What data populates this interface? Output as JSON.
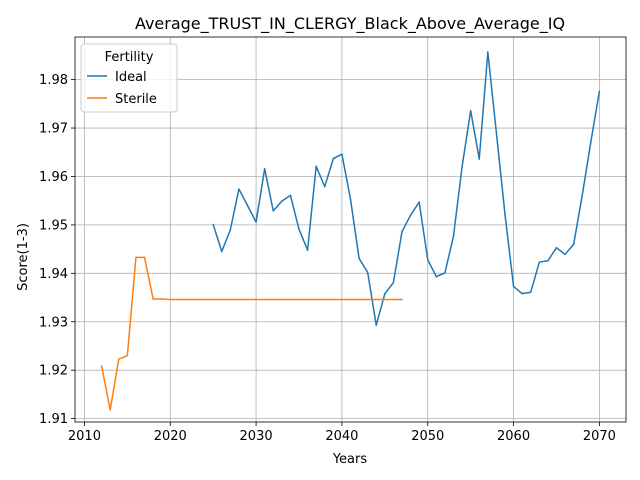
{
  "chart_data": {
    "type": "line",
    "title": "Average_TRUST_IN_CLERGY_Black_Above_Average_IQ",
    "xlabel": "Years",
    "ylabel": "Score(1-3)",
    "xlim": [
      2008.9,
      2073.1
    ],
    "ylim": [
      1.9093,
      1.9888
    ],
    "xticks": [
      2010,
      2020,
      2030,
      2040,
      2050,
      2060,
      2070
    ],
    "yticks": [
      1.91,
      1.92,
      1.93,
      1.94,
      1.95,
      1.96,
      1.97,
      1.98
    ],
    "ytick_labels": [
      "1.91",
      "1.92",
      "1.93",
      "1.94",
      "1.95",
      "1.96",
      "1.97",
      "1.98"
    ],
    "grid": true,
    "legend": {
      "title": "Fertility",
      "position": "top-left"
    },
    "series": [
      {
        "name": "Ideal",
        "color": "#1f77b4",
        "x": [
          2025,
          2026,
          2027,
          2028,
          2029,
          2030,
          2031,
          2032,
          2033,
          2034,
          2035,
          2036,
          2037,
          2038,
          2039,
          2040,
          2041,
          2042,
          2043,
          2044,
          2045,
          2046,
          2047,
          2048,
          2049,
          2050,
          2051,
          2052,
          2053,
          2054,
          2055,
          2056,
          2057,
          2058,
          2059,
          2060,
          2061,
          2062,
          2063,
          2064,
          2065,
          2066,
          2067,
          2068,
          2069,
          2070
        ],
        "y": [
          1.9501,
          1.9445,
          1.949,
          1.9574,
          1.954,
          1.9506,
          1.9616,
          1.9529,
          1.9549,
          1.9561,
          1.9491,
          1.9448,
          1.9621,
          1.9579,
          1.9637,
          1.9646,
          1.9553,
          1.9431,
          1.9402,
          1.9293,
          1.9358,
          1.9381,
          1.9486,
          1.952,
          1.9547,
          1.9428,
          1.9393,
          1.9401,
          1.9477,
          1.962,
          1.9736,
          1.9636,
          1.9857,
          1.969,
          1.9522,
          1.9373,
          1.9358,
          1.9361,
          1.9423,
          1.9426,
          1.9453,
          1.9439,
          1.946,
          1.9561,
          1.9671,
          1.9776
        ]
      },
      {
        "name": "Sterile",
        "color": "#ff7f0e",
        "x": [
          2012,
          2013,
          2014,
          2015,
          2016,
          2017,
          2018,
          2019,
          2020,
          2021,
          2022,
          2023,
          2024,
          2025,
          2026,
          2027,
          2028,
          2029,
          2030,
          2031,
          2032,
          2033,
          2034,
          2035,
          2036,
          2037,
          2038,
          2039,
          2040,
          2041,
          2042,
          2043,
          2044,
          2045,
          2046,
          2047
        ],
        "y": [
          1.9209,
          1.9118,
          1.9223,
          1.923,
          1.9433,
          1.9433,
          1.9347,
          1.9347,
          1.9346,
          1.9346,
          1.9346,
          1.9346,
          1.9346,
          1.9346,
          1.9346,
          1.9346,
          1.9346,
          1.9346,
          1.9346,
          1.9346,
          1.9346,
          1.9346,
          1.9346,
          1.9346,
          1.9346,
          1.9346,
          1.9346,
          1.9346,
          1.9346,
          1.9346,
          1.9346,
          1.9346,
          1.9346,
          1.9346,
          1.9346,
          1.9346
        ]
      }
    ]
  }
}
